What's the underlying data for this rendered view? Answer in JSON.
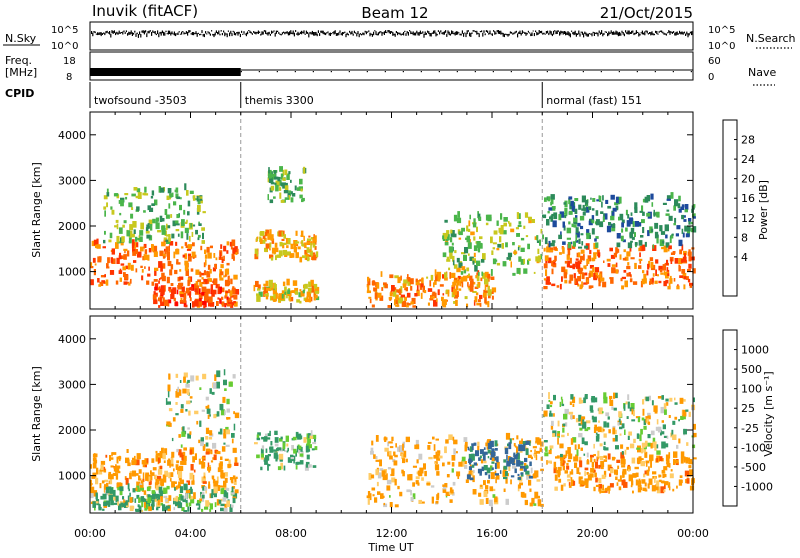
{
  "header": {
    "station": "Inuvik (fitACF)",
    "beam": "Beam 12",
    "date": "21/Oct/2015"
  },
  "panels": {
    "nsky_label": "N.Sky",
    "nsearch_label": "N.Search",
    "freq_label_1": "Freq.",
    "freq_label_2": "[MHz]",
    "nave_label": "Nave",
    "cpid_label": "CPID",
    "nsky_ticks": [
      "10^5",
      "10^0"
    ],
    "nsearch_ticks": [
      "10^5",
      "10^0"
    ],
    "freq_ticks": [
      "18",
      "8"
    ],
    "nave_ticks": [
      "60",
      "0"
    ]
  },
  "cpid_segments": [
    {
      "label": "twofsound -3503",
      "start": 0,
      "end": 6
    },
    {
      "label": "themis 3300",
      "start": 6,
      "end": 18
    },
    {
      "label": "normal (fast) 151",
      "start": 18,
      "end": 24
    }
  ],
  "colors": {
    "power_scale": [
      "#0000ff",
      "#1d4a9c",
      "#2c8a5a",
      "#4ab54a",
      "#c8c81e",
      "#ff9900",
      "#ff6600",
      "#ff3300",
      "#ff0000"
    ],
    "velocity_scale": [
      "#ff0000",
      "#ff5500",
      "#ff9900",
      "#ffcc66",
      "#cccccc",
      "#66cc33",
      "#339966",
      "#336699",
      "#2233aa"
    ]
  },
  "colorbars": {
    "power": {
      "title": "Power [dB]",
      "ticks": [
        "28",
        "24",
        "20",
        "16",
        "12",
        "8",
        "4"
      ]
    },
    "velocity": {
      "title": "Velocity [m s⁻¹]",
      "ticks": [
        "1000",
        "500",
        "100",
        "25",
        "-25",
        "-100",
        "-500",
        "-1000"
      ]
    }
  },
  "chart_data": [
    {
      "type": "heatmap",
      "ylabel": "Slant Range [km]",
      "xlabel": "Time UT",
      "x_ticks": [
        "00:00",
        "04:00",
        "08:00",
        "12:00",
        "16:00",
        "20:00",
        "00:00"
      ],
      "y_ticks": [
        "1000",
        "2000",
        "3000",
        "4000"
      ],
      "xlim": [
        0,
        24
      ],
      "ylim": [
        180,
        4500
      ],
      "colorbar": "Power [dB]",
      "mode_change_hours": [
        6,
        18
      ],
      "regions": [
        {
          "t0": 0.0,
          "t1": 5.8,
          "r0": 600,
          "r1": 1600,
          "value_db": 26
        },
        {
          "t0": 0.5,
          "t1": 4.5,
          "r0": 1600,
          "r1": 2800,
          "value_db": 14
        },
        {
          "t0": 2.5,
          "t1": 5.8,
          "r0": 200,
          "r1": 600,
          "value_db": 28
        },
        {
          "t0": 6.5,
          "t1": 9.0,
          "r0": 1200,
          "r1": 1800,
          "value_db": 22
        },
        {
          "t0": 6.5,
          "t1": 9.0,
          "r0": 300,
          "r1": 700,
          "value_db": 20
        },
        {
          "t0": 7.0,
          "t1": 8.5,
          "r0": 2500,
          "r1": 3200,
          "value_db": 14
        },
        {
          "t0": 11.0,
          "t1": 16.0,
          "r0": 200,
          "r1": 900,
          "value_db": 24
        },
        {
          "t0": 14.0,
          "t1": 18.0,
          "r0": 900,
          "r1": 2200,
          "value_db": 16
        },
        {
          "t0": 18.0,
          "t1": 24.0,
          "r0": 600,
          "r1": 1500,
          "value_db": 26
        },
        {
          "t0": 18.0,
          "t1": 24.0,
          "r0": 1500,
          "r1": 2600,
          "value_db": 10
        }
      ]
    },
    {
      "type": "heatmap",
      "ylabel": "Slant Range [km]",
      "xlabel": "Time UT",
      "x_ticks": [
        "00:00",
        "04:00",
        "08:00",
        "12:00",
        "16:00",
        "20:00",
        "00:00"
      ],
      "y_ticks": [
        "1000",
        "2000",
        "3000",
        "4000"
      ],
      "xlim": [
        0,
        24
      ],
      "ylim": [
        180,
        4500
      ],
      "colorbar": "Velocity [m s⁻¹]",
      "mode_change_hours": [
        6,
        18
      ],
      "regions": [
        {
          "t0": 0.0,
          "t1": 5.8,
          "r0": 700,
          "r1": 1500,
          "value_ms": -300
        },
        {
          "t0": 0.0,
          "t1": 5.8,
          "r0": 200,
          "r1": 700,
          "value_ms": 80
        },
        {
          "t0": 3.0,
          "t1": 5.8,
          "r0": 1500,
          "r1": 3200,
          "value_ms": 0
        },
        {
          "t0": 6.5,
          "t1": 9.0,
          "r0": 1100,
          "r1": 1900,
          "value_ms": 200
        },
        {
          "t0": 11.0,
          "t1": 18.0,
          "r0": 300,
          "r1": 1800,
          "value_ms": -200
        },
        {
          "t0": 15.0,
          "t1": 17.5,
          "r0": 900,
          "r1": 1700,
          "value_ms": 600
        },
        {
          "t0": 18.0,
          "t1": 24.0,
          "r0": 600,
          "r1": 1400,
          "value_ms": -300
        },
        {
          "t0": 18.0,
          "t1": 24.0,
          "r0": 1400,
          "r1": 2700,
          "value_ms": 0
        }
      ]
    }
  ]
}
